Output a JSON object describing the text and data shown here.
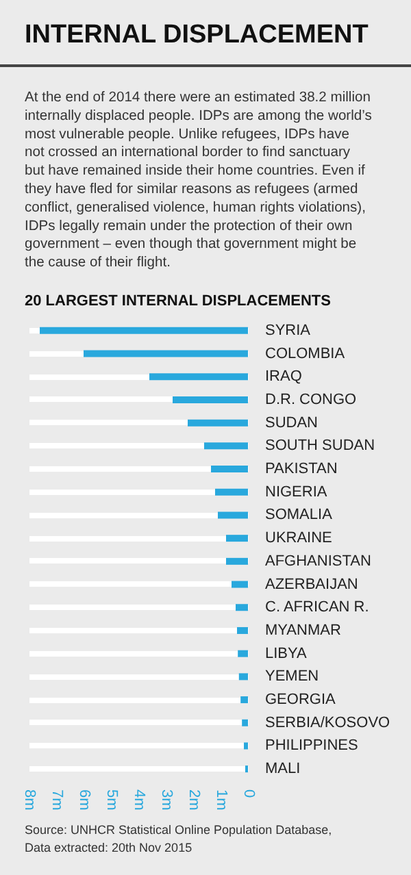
{
  "chart_data": {
    "type": "bar",
    "orientation": "horizontal",
    "title": "INTERNAL DISPLACEMENT",
    "subtitle": [
      "At the end of 2014 there were an estimated 38.2 million",
      "internally displaced people. IDPs are among the world’s",
      "most vulnerable people. Unlike refugees, IDPs have",
      "not crossed an international border to find sanctuary",
      "but have remained inside their home countries. Even if",
      "they have fled for similar reasons as refugees (armed",
      "conflict, generalised violence, human rights violations),",
      "IDPs legally remain under the protection of their own",
      "government – even though that government might be",
      "the cause of their flight."
    ],
    "annotations": [
      "20 LARGEST INTERNAL DISPLACEMENTS",
      "Source: UNHCR Statistical Online Population Database,",
      "Data extracted: 20th Nov 2015"
    ],
    "categories": [
      "SYRIA",
      "COLOMBIA",
      "IRAQ",
      "D.R. CONGO",
      "SUDAN",
      "SOUTH SUDAN",
      "PAKISTAN",
      "NIGERIA",
      "SOMALIA",
      "UKRAINE",
      "AFGHANISTAN",
      "AZERBAIJAN",
      "C. AFRICAN R.",
      "MYANMAR",
      "LIBYA",
      "YEMEN",
      "GEORGIA",
      "SERBIA/KOSOVO",
      "PHILIPPINES",
      "MALI"
    ],
    "values": [
      7.6,
      6.0,
      3.6,
      2.75,
      2.2,
      1.6,
      1.35,
      1.2,
      1.1,
      0.8,
      0.8,
      0.6,
      0.45,
      0.4,
      0.37,
      0.33,
      0.27,
      0.22,
      0.15,
      0.1
    ],
    "color": "#29a8dd",
    "xlim": [
      8,
      0
    ],
    "xticks": [
      {
        "value": 8,
        "label": "8m"
      },
      {
        "value": 7,
        "label": "7m"
      },
      {
        "value": 6,
        "label": "6m"
      },
      {
        "value": 5,
        "label": "5m"
      },
      {
        "value": 4,
        "label": "4m"
      },
      {
        "value": 3,
        "label": "3m"
      },
      {
        "value": 2,
        "label": "2m"
      },
      {
        "value": 1,
        "label": "1m"
      },
      0
    ],
    "grid": "y"
  }
}
